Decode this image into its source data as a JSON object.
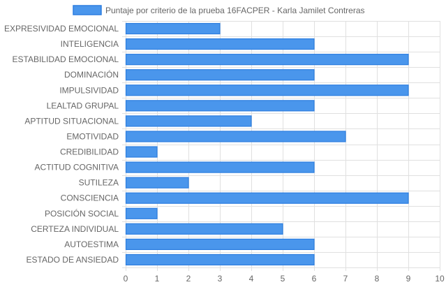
{
  "chart_data": {
    "type": "bar",
    "orientation": "horizontal",
    "categories": [
      "EXPRESIVIDAD EMOCIONAL",
      "INTELIGENCIA",
      "ESTABILIDAD EMOCIONAL",
      "DOMINACIÓN",
      "IMPULSIVIDAD",
      "LEALTAD GRUPAL",
      "APTITUD SITUACIONAL",
      "EMOTIVIDAD",
      "CREDIBILIDAD",
      "ACTITUD COGNITIVA",
      "SUTILEZA",
      "CONSCIENCIA",
      "POSICIÓN SOCIAL",
      "CERTEZA INDIVIDUAL",
      "AUTOESTIMA",
      "ESTADO DE ANSIEDAD"
    ],
    "series": [
      {
        "name": "Puntaje por criterio de la prueba 16FACPER - Karla Jamilet Contreras",
        "values": [
          3,
          6,
          9,
          6,
          9,
          6,
          4,
          7,
          1,
          6,
          2,
          9,
          1,
          5,
          6,
          6
        ],
        "color": "#4a96ec",
        "border_color": "#2d7ee0"
      }
    ],
    "xlim": [
      0,
      10
    ],
    "x_ticks": [
      "0",
      "1",
      "2",
      "3",
      "4",
      "5",
      "6",
      "7",
      "8",
      "9",
      "10"
    ],
    "grid": true,
    "legend_position": "top"
  },
  "colors": {
    "grid": "#e0e0e0",
    "text": "#666666",
    "background": "#ffffff"
  }
}
